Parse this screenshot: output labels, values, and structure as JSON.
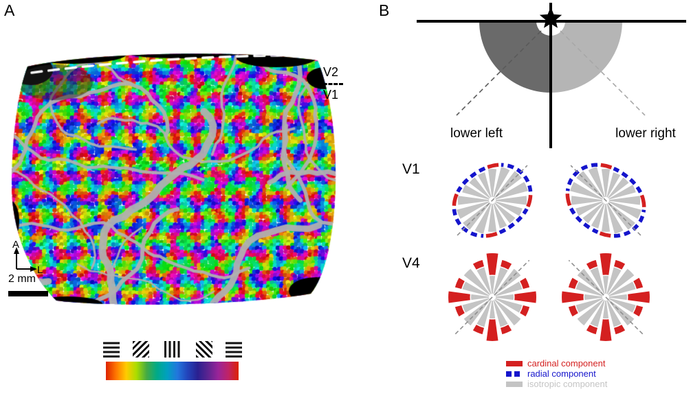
{
  "panels": {
    "a": {
      "label": "A",
      "map": {
        "region_label_top": "V2",
        "region_label_bottom": "V1"
      },
      "compass": {
        "vertical": "A",
        "horizontal": "L"
      },
      "scale_bar_label": "2 mm",
      "gratings": [
        0,
        45,
        90,
        135,
        180
      ],
      "colorbar_colors": [
        "#dd2200",
        "#ff7700",
        "#ffcc00",
        "#aadd00",
        "#44aa44",
        "#00aa88",
        "#00a0c0",
        "#2277dd",
        "#2244bb",
        "#2a2090",
        "#5c2490",
        "#992499",
        "#c02366",
        "#dd2200"
      ]
    },
    "b": {
      "label": "B",
      "visual_field": {
        "lower_left_label": "lower left",
        "lower_right_label": "lower right",
        "lower_left_color": "#6a6a6a",
        "lower_right_color": "#b5b5b5",
        "marker": "star"
      },
      "rows": {
        "v1": "V1",
        "v4": "V4"
      },
      "legend": [
        {
          "label": "cardinal component",
          "color": "#d42020",
          "style": "solid"
        },
        {
          "label": "radial component",
          "color": "#1515cc",
          "style": "dashed"
        },
        {
          "label": "isotropic component",
          "color": "#c4c4c4",
          "style": "solid"
        }
      ]
    }
  }
}
